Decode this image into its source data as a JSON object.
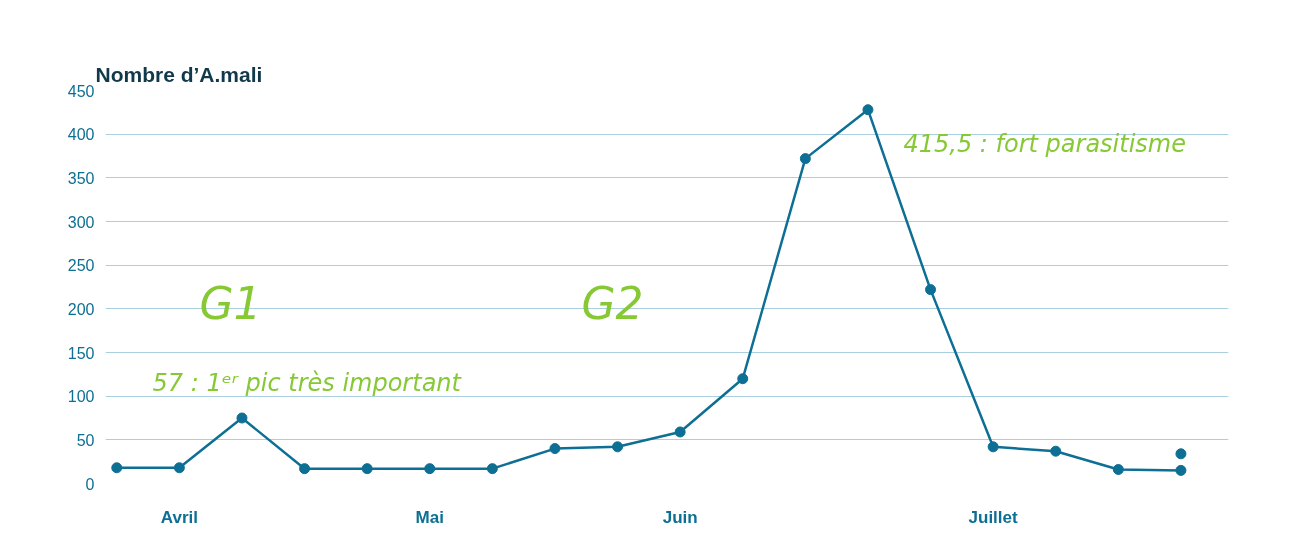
{
  "chart_data": {
    "type": "line",
    "title": "Nombre d’A.mali",
    "categories": [
      null,
      "Avril",
      null,
      null,
      null,
      "Mai",
      null,
      null,
      null,
      "Juin",
      null,
      null,
      null,
      null,
      "Juillet",
      null,
      null,
      null
    ],
    "ylim": [
      0,
      450
    ],
    "yticks": [
      0,
      50,
      100,
      150,
      200,
      250,
      300,
      350,
      400,
      450
    ],
    "grid": "y",
    "marker": "circle",
    "line_style": "solid",
    "series": [
      {
        "color": "#0e6f94",
        "values": [
          18,
          18,
          75,
          17,
          17,
          17,
          17,
          40,
          42,
          59,
          120,
          372,
          428,
          222,
          42,
          37,
          16,
          15
        ]
      },
      {
        "type": "scatter",
        "color": "#0e6f94",
        "values": [
          null,
          null,
          null,
          null,
          null,
          null,
          null,
          null,
          null,
          null,
          null,
          null,
          null,
          null,
          null,
          null,
          null,
          34
        ]
      }
    ],
    "annotations": [
      "G1",
      "G2",
      "57 : 1ᵉʳ pic très important",
      "415,5 : fort parasitisme"
    ]
  }
}
